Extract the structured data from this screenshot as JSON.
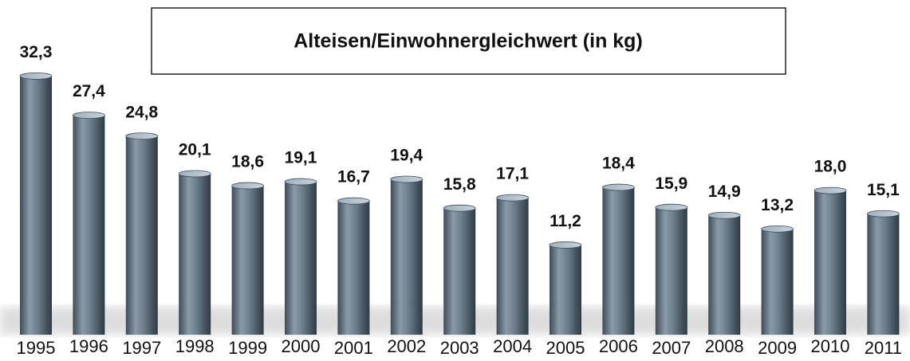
{
  "chart_data": {
    "type": "bar",
    "title": "Alteisen/Einwohnergleichwert (in kg)",
    "categories": [
      "1995",
      "1996",
      "1997",
      "1998",
      "1999",
      "2000",
      "2001",
      "2002",
      "2003",
      "2004",
      "2005",
      "2006",
      "2007",
      "2008",
      "2009",
      "2010",
      "2011"
    ],
    "values": [
      32.3,
      27.4,
      24.8,
      20.1,
      18.6,
      19.1,
      16.7,
      19.4,
      15.8,
      17.1,
      11.2,
      18.4,
      15.9,
      14.9,
      13.2,
      18.0,
      15.1
    ],
    "value_labels": [
      "32,3",
      "27,4",
      "24,8",
      "20,1",
      "18,6",
      "19,1",
      "16,7",
      "19,4",
      "15,8",
      "17,1",
      "11,2",
      "18,4",
      "15,9",
      "14,9",
      "13,2",
      "18,0",
      "15,1"
    ],
    "color": "#6d7f8e"
  }
}
